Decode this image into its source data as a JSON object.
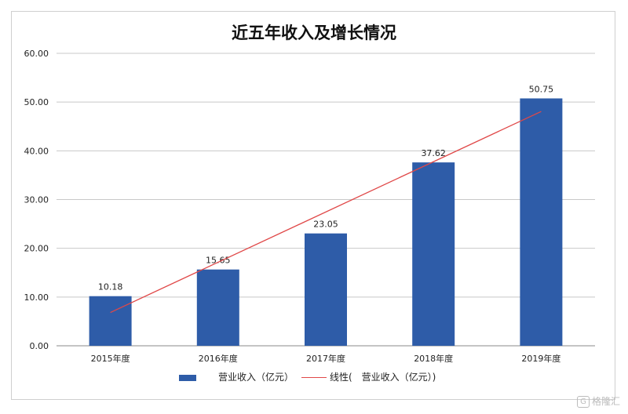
{
  "chart_data": {
    "type": "bar",
    "title": "近五年收入及增长情况",
    "categories": [
      "2015年度",
      "2016年度",
      "2017年度",
      "2018年度",
      "2019年度"
    ],
    "series": [
      {
        "name": "营业收入（亿元）",
        "values": [
          10.18,
          15.65,
          23.05,
          37.62,
          50.75
        ],
        "color": "#2e5ca8"
      }
    ],
    "trendline": {
      "name": "线性(　营业收入（亿元）)",
      "type": "linear",
      "color": "#e04848"
    },
    "data_labels": [
      "10.18",
      "15.65",
      "23.05",
      "37.62",
      "50.75"
    ],
    "y_ticks": [
      "0.00",
      "10.00",
      "20.00",
      "30.00",
      "40.00",
      "50.00",
      "60.00"
    ],
    "ylim": [
      0,
      60
    ],
    "xlabel": "",
    "ylabel": "",
    "grid": true,
    "legend_position": "bottom"
  },
  "legend": {
    "bar_label": "营业收入（亿元）",
    "line_label": "线性(　营业收入（亿元）)"
  },
  "watermark": {
    "icon": "G",
    "text": "格隆汇"
  }
}
